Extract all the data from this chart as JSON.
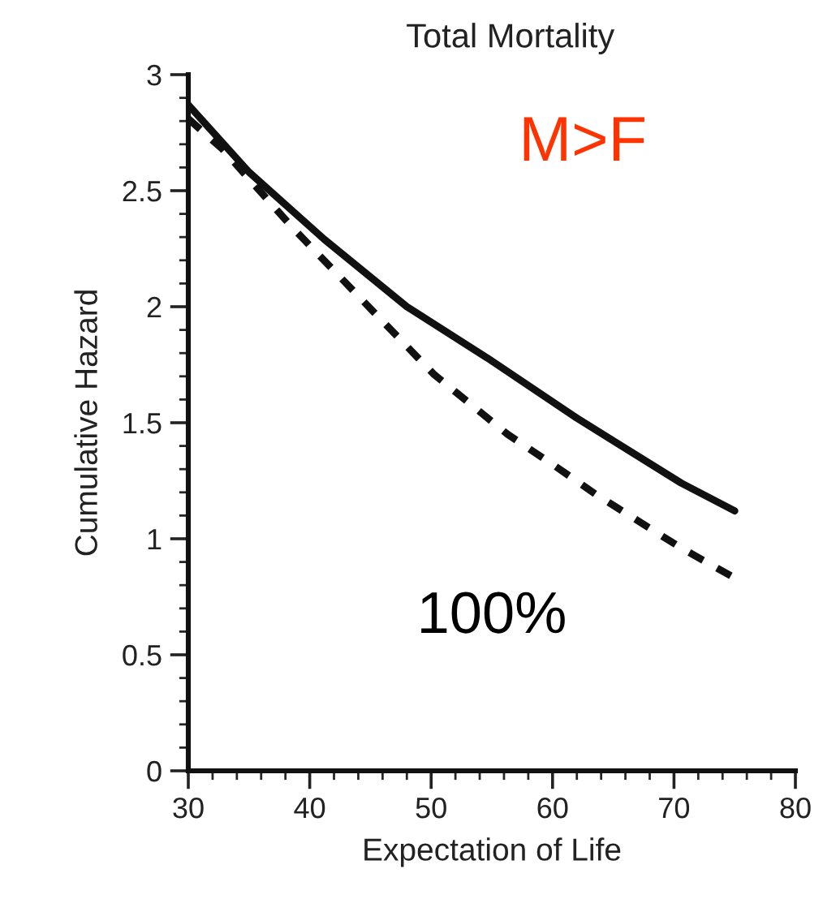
{
  "chart_data": {
    "type": "line",
    "title": "Total Mortality",
    "xlabel": "Expectation of Life",
    "ylabel": "Cumulative Hazard",
    "xlim": [
      30,
      80
    ],
    "xticks": [
      30,
      40,
      50,
      60,
      70,
      80
    ],
    "ylim": [
      0,
      3
    ],
    "yticks": [
      0,
      0.5,
      1,
      1.5,
      2,
      2.5,
      3
    ],
    "grid": false,
    "legend": false,
    "annotations": [
      "M>F",
      "100%"
    ],
    "series": [
      {
        "color": "#111111",
        "line_style": "solid",
        "x": [
          30,
          35,
          41.2,
          48,
          54.6,
          62,
          70.6,
          75
        ],
        "values": [
          2.87,
          2.58,
          2.29,
          2.0,
          1.78,
          1.52,
          1.24,
          1.12
        ]
      },
      {
        "color": "#111111",
        "line_style": "dashed",
        "x": [
          30,
          32.8,
          38.6,
          44.3,
          50.2,
          56.3,
          60.3,
          63.6,
          70.6,
          74.7
        ],
        "values": [
          2.81,
          2.68,
          2.34,
          2.03,
          1.71,
          1.45,
          1.31,
          1.19,
          0.96,
          0.84
        ]
      }
    ]
  }
}
